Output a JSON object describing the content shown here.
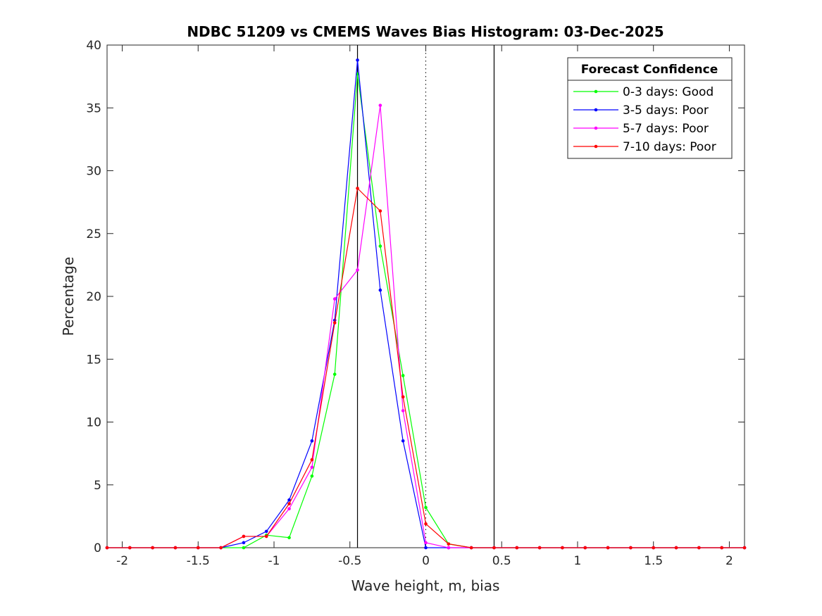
{
  "chart_data": {
    "type": "line",
    "title": "NDBC 51209 vs CMEMS Waves Bias Histogram: 03-Dec-2025",
    "xlabel": "Wave height, m, bias",
    "ylabel": "Percentage",
    "xlim": [
      -2.1,
      2.1
    ],
    "ylim": [
      0,
      40
    ],
    "xticks": [
      -2,
      -1.5,
      -1,
      -0.5,
      0,
      0.5,
      1,
      1.5,
      2
    ],
    "xtick_labels": [
      "-2",
      "-1.5",
      "-1",
      "-0.5",
      "0",
      "0.5",
      "1",
      "1.5",
      "2"
    ],
    "yticks": [
      0,
      5,
      10,
      15,
      20,
      25,
      30,
      35,
      40
    ],
    "ytick_labels": [
      "0",
      "5",
      "10",
      "15",
      "20",
      "25",
      "30",
      "35",
      "40"
    ],
    "grid": false,
    "legend_title": "Forecast Confidence",
    "legend_position": "top-right",
    "reference_lines": {
      "solid": [
        -0.45,
        0.45
      ],
      "dotted": [
        0
      ]
    },
    "x": [
      -2.1,
      -1.95,
      -1.8,
      -1.65,
      -1.5,
      -1.35,
      -1.2,
      -1.05,
      -0.9,
      -0.75,
      -0.6,
      -0.45,
      -0.3,
      -0.15,
      0,
      0.15,
      0.3,
      0.45,
      0.6,
      0.75,
      0.9,
      1.05,
      1.2,
      1.35,
      1.5,
      1.65,
      1.8,
      1.95,
      2.1
    ],
    "series": [
      {
        "name": "0-3 days: Good",
        "color": "#00ff00",
        "values": [
          0,
          0,
          0,
          0,
          0,
          0,
          0,
          1.0,
          0.8,
          5.7,
          13.8,
          37.7,
          24.0,
          13.7,
          3.2,
          0.3,
          0,
          0,
          0,
          0,
          0,
          0,
          0,
          0,
          0,
          0,
          0,
          0,
          0
        ]
      },
      {
        "name": "3-5 days: Poor",
        "color": "#0000ff",
        "values": [
          0,
          0,
          0,
          0,
          0,
          0,
          0.4,
          1.3,
          3.8,
          8.5,
          18.1,
          38.8,
          20.5,
          8.5,
          0,
          0,
          0,
          0,
          0,
          0,
          0,
          0,
          0,
          0,
          0,
          0,
          0,
          0,
          0
        ]
      },
      {
        "name": "5-7 days: Poor",
        "color": "#ff00ff",
        "values": [
          0,
          0,
          0,
          0,
          0,
          0,
          0.9,
          0.9,
          3.1,
          6.4,
          19.8,
          22.1,
          35.2,
          10.9,
          0.4,
          0,
          0,
          0,
          0,
          0,
          0,
          0,
          0,
          0,
          0,
          0,
          0,
          0,
          0
        ]
      },
      {
        "name": "7-10 days: Poor",
        "color": "#ff0000",
        "values": [
          0,
          0,
          0,
          0,
          0,
          0,
          0.9,
          0.9,
          3.5,
          7.0,
          17.9,
          28.6,
          26.8,
          12.0,
          1.9,
          0.3,
          0,
          0,
          0,
          0,
          0,
          0,
          0,
          0,
          0,
          0,
          0,
          0,
          0
        ]
      }
    ]
  }
}
